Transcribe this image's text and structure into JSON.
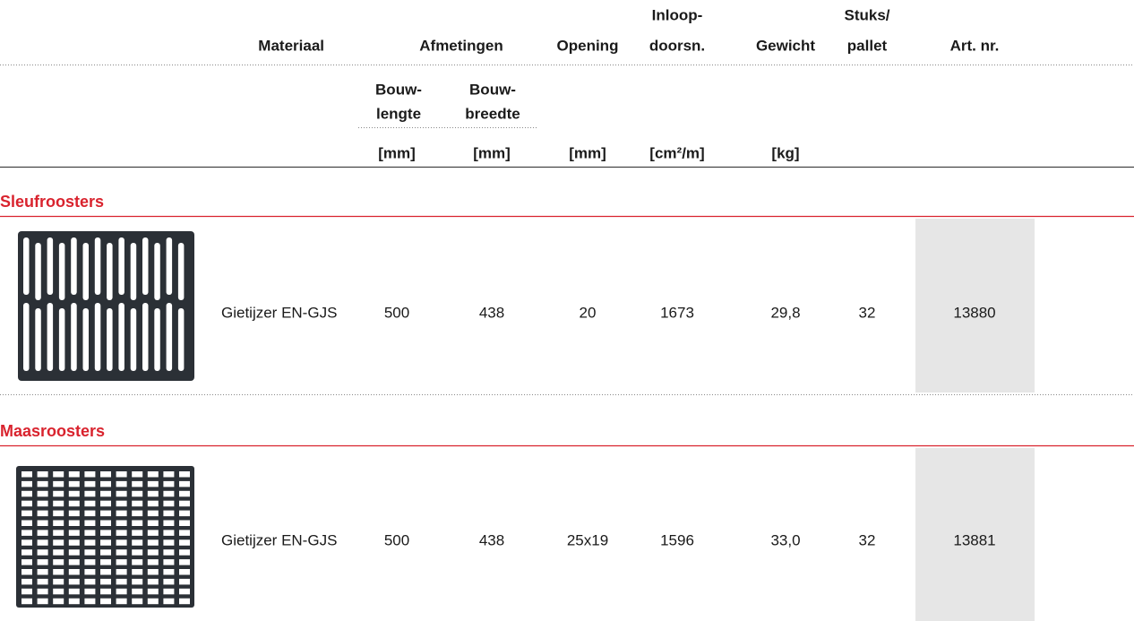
{
  "header": {
    "materiaal": "Materiaal",
    "afmetingen": "Afmetingen",
    "opening": "Opening",
    "inloop": [
      "Inloop-",
      "doorsn."
    ],
    "gewicht": "Gewicht",
    "stuks": [
      "Stuks/",
      "pallet"
    ],
    "art_nr": "Art. nr.",
    "bouwlengte": [
      "Bouw-",
      "lengte"
    ],
    "bouwbreedte": [
      "Bouw-",
      "breedte"
    ],
    "units": [
      "[mm]",
      "[mm]",
      "[mm]",
      "[cm²/m]",
      "[kg]"
    ]
  },
  "sections": [
    {
      "title": "Sleufroosters",
      "row": [
        "Gietijzer EN-GJS",
        "500",
        "438",
        "20",
        "1673",
        "29,8",
        "32",
        "13880"
      ]
    },
    {
      "title": "Maasroosters",
      "row": [
        "Gietijzer EN-GJS",
        "500",
        "438",
        "25x19",
        "1596",
        "33,0",
        "32",
        "13881"
      ]
    }
  ]
}
